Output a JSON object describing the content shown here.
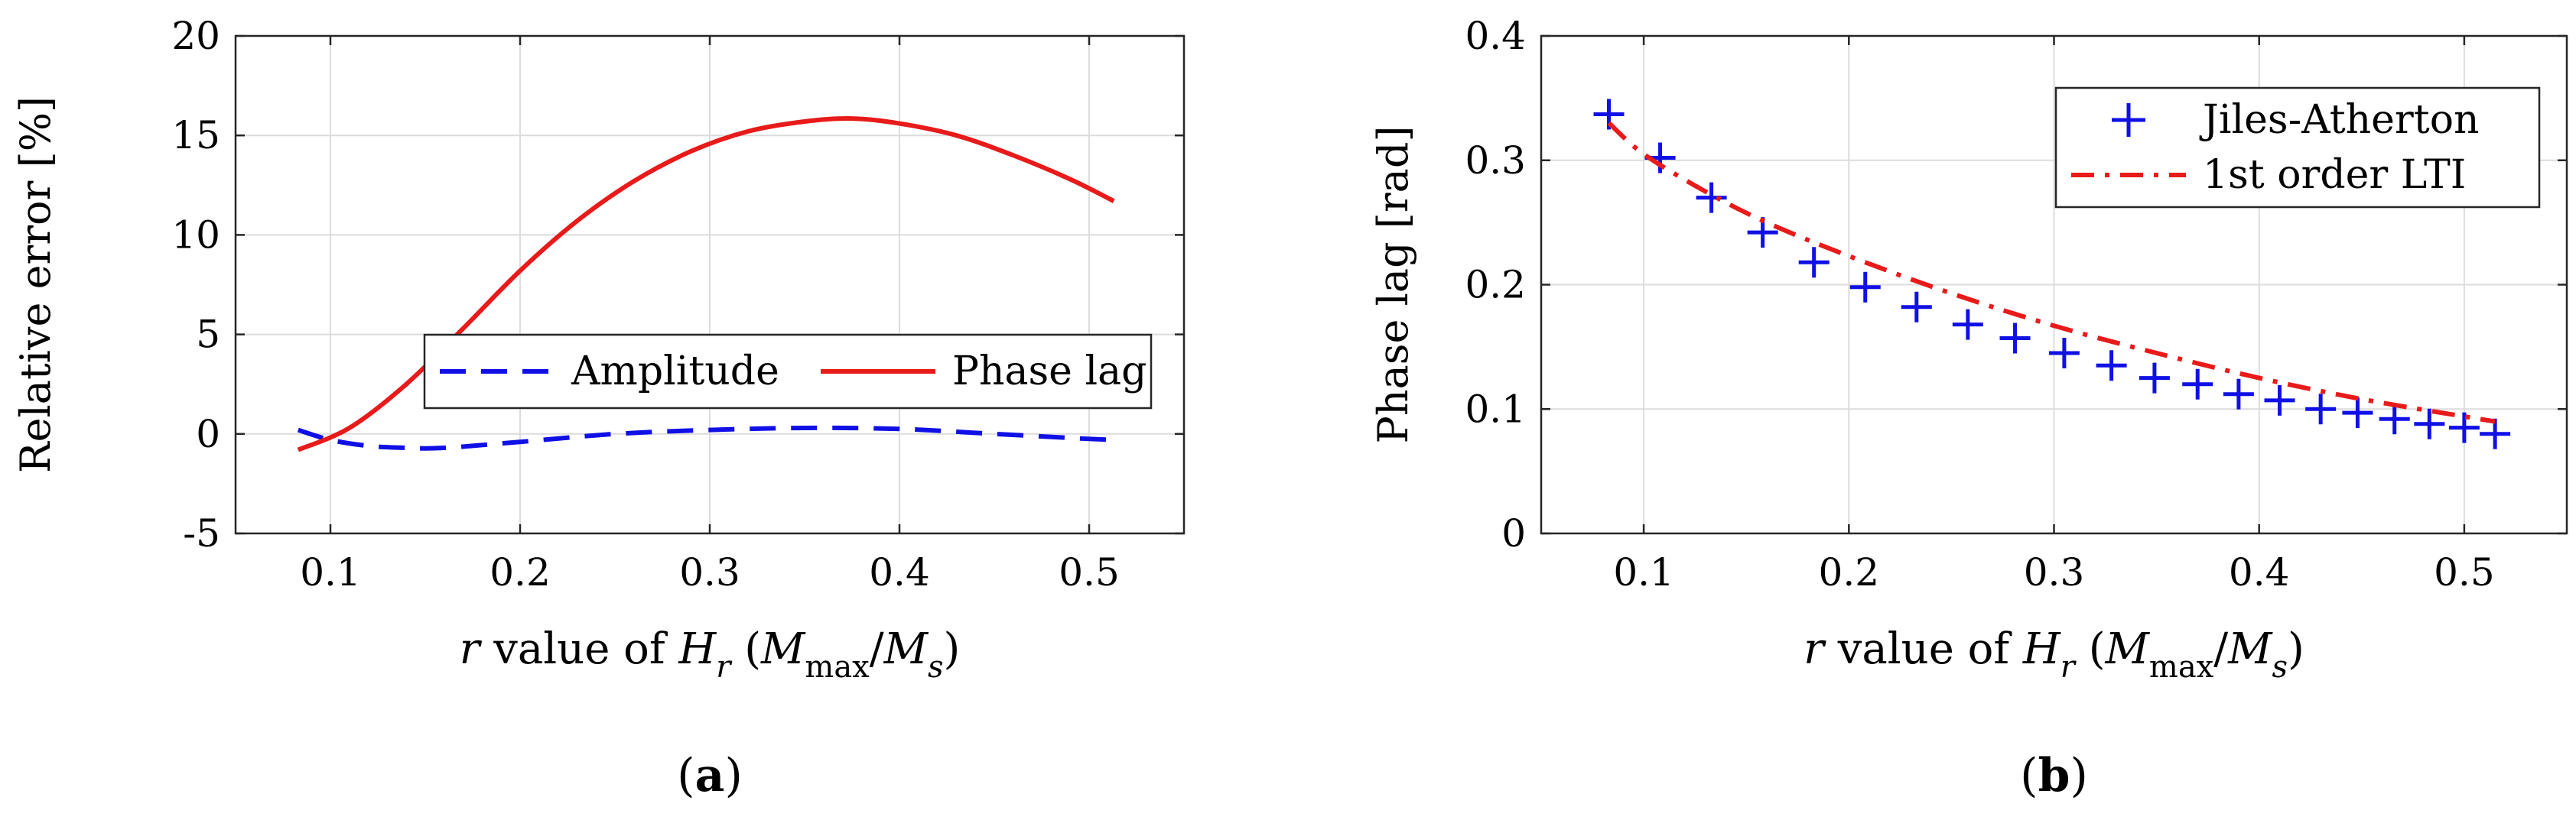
{
  "chart_data": [
    {
      "type": "line",
      "panel_label": "a",
      "title": "",
      "xlabel": {
        "italic_r": "r",
        "middle": " value of ",
        "H": "H",
        "H_sub": "r",
        "open": " (",
        "M1": "M",
        "M1_sub": "max",
        "slash": "/",
        "M2": "M",
        "M2_sub": "s",
        "close": ")"
      },
      "ylabel": "Relative error [%]",
      "xlim": [
        0.05,
        0.55
      ],
      "ylim": [
        -5,
        20
      ],
      "xticks": [
        0.1,
        0.2,
        0.3,
        0.4,
        0.5
      ],
      "xtick_labels": [
        "0.1",
        "0.2",
        "0.3",
        "0.4",
        "0.5"
      ],
      "yticks": [
        -5,
        0,
        5,
        10,
        15,
        20
      ],
      "ytick_labels": [
        "-5",
        "0",
        "5",
        "10",
        "15",
        "20"
      ],
      "grid": true,
      "legend": {
        "placement": "center-right",
        "orientation": "horizontal"
      },
      "series": [
        {
          "name": "Amplitude",
          "color": "#1010e6",
          "style": "dashed",
          "x": [
            0.083,
            0.1,
            0.12,
            0.14,
            0.16,
            0.2,
            0.25,
            0.3,
            0.35,
            0.4,
            0.45,
            0.5,
            0.513
          ],
          "y": [
            0.2,
            -0.3,
            -0.6,
            -0.7,
            -0.7,
            -0.4,
            0.0,
            0.2,
            0.3,
            0.25,
            0.0,
            -0.25,
            -0.3
          ]
        },
        {
          "name": "Phase lag",
          "color": "#e81a1a",
          "style": "solid",
          "x": [
            0.083,
            0.11,
            0.14,
            0.17,
            0.2,
            0.23,
            0.26,
            0.29,
            0.32,
            0.35,
            0.375,
            0.4,
            0.43,
            0.46,
            0.49,
            0.513
          ],
          "y": [
            -0.8,
            0.3,
            2.5,
            5.3,
            8.2,
            10.7,
            12.7,
            14.2,
            15.2,
            15.7,
            15.85,
            15.6,
            15.0,
            14.0,
            12.8,
            11.7
          ]
        }
      ]
    },
    {
      "type": "line",
      "panel_label": "b",
      "title": "",
      "xlabel": {
        "italic_r": "r",
        "middle": " value of ",
        "H": "H",
        "H_sub": "r",
        "open": " (",
        "M1": "M",
        "M1_sub": "max",
        "slash": "/",
        "M2": "M",
        "M2_sub": "s",
        "close": ")"
      },
      "ylabel": "Phase lag [rad]",
      "xlim": [
        0.05,
        0.55
      ],
      "ylim": [
        0,
        0.4
      ],
      "xticks": [
        0.1,
        0.2,
        0.3,
        0.4,
        0.5
      ],
      "xtick_labels": [
        "0.1",
        "0.2",
        "0.3",
        "0.4",
        "0.5"
      ],
      "yticks": [
        0,
        0.1,
        0.2,
        0.3,
        0.4
      ],
      "ytick_labels": [
        "0",
        "0.1",
        "0.2",
        "0.3",
        "0.4"
      ],
      "grid": true,
      "legend": {
        "placement": "top-right",
        "orientation": "vertical"
      },
      "series": [
        {
          "name": "Jiles-Atherton",
          "color": "#1010e6",
          "style": "plus-markers",
          "x": [
            0.083,
            0.108,
            0.133,
            0.158,
            0.183,
            0.208,
            0.233,
            0.258,
            0.281,
            0.305,
            0.328,
            0.349,
            0.37,
            0.39,
            0.41,
            0.43,
            0.448,
            0.466,
            0.483,
            0.5,
            0.515
          ],
          "y": [
            0.337,
            0.302,
            0.27,
            0.242,
            0.218,
            0.198,
            0.182,
            0.168,
            0.157,
            0.145,
            0.135,
            0.125,
            0.12,
            0.112,
            0.107,
            0.1,
            0.097,
            0.092,
            0.088,
            0.085,
            0.08
          ]
        },
        {
          "name": "1st order LTI",
          "color": "#e81a1a",
          "style": "dash-dot",
          "x": [
            0.083,
            0.1,
            0.13,
            0.16,
            0.2,
            0.25,
            0.3,
            0.35,
            0.4,
            0.45,
            0.5,
            0.515
          ],
          "y": [
            0.33,
            0.305,
            0.275,
            0.25,
            0.223,
            0.193,
            0.167,
            0.145,
            0.125,
            0.108,
            0.094,
            0.09
          ]
        }
      ]
    }
  ]
}
